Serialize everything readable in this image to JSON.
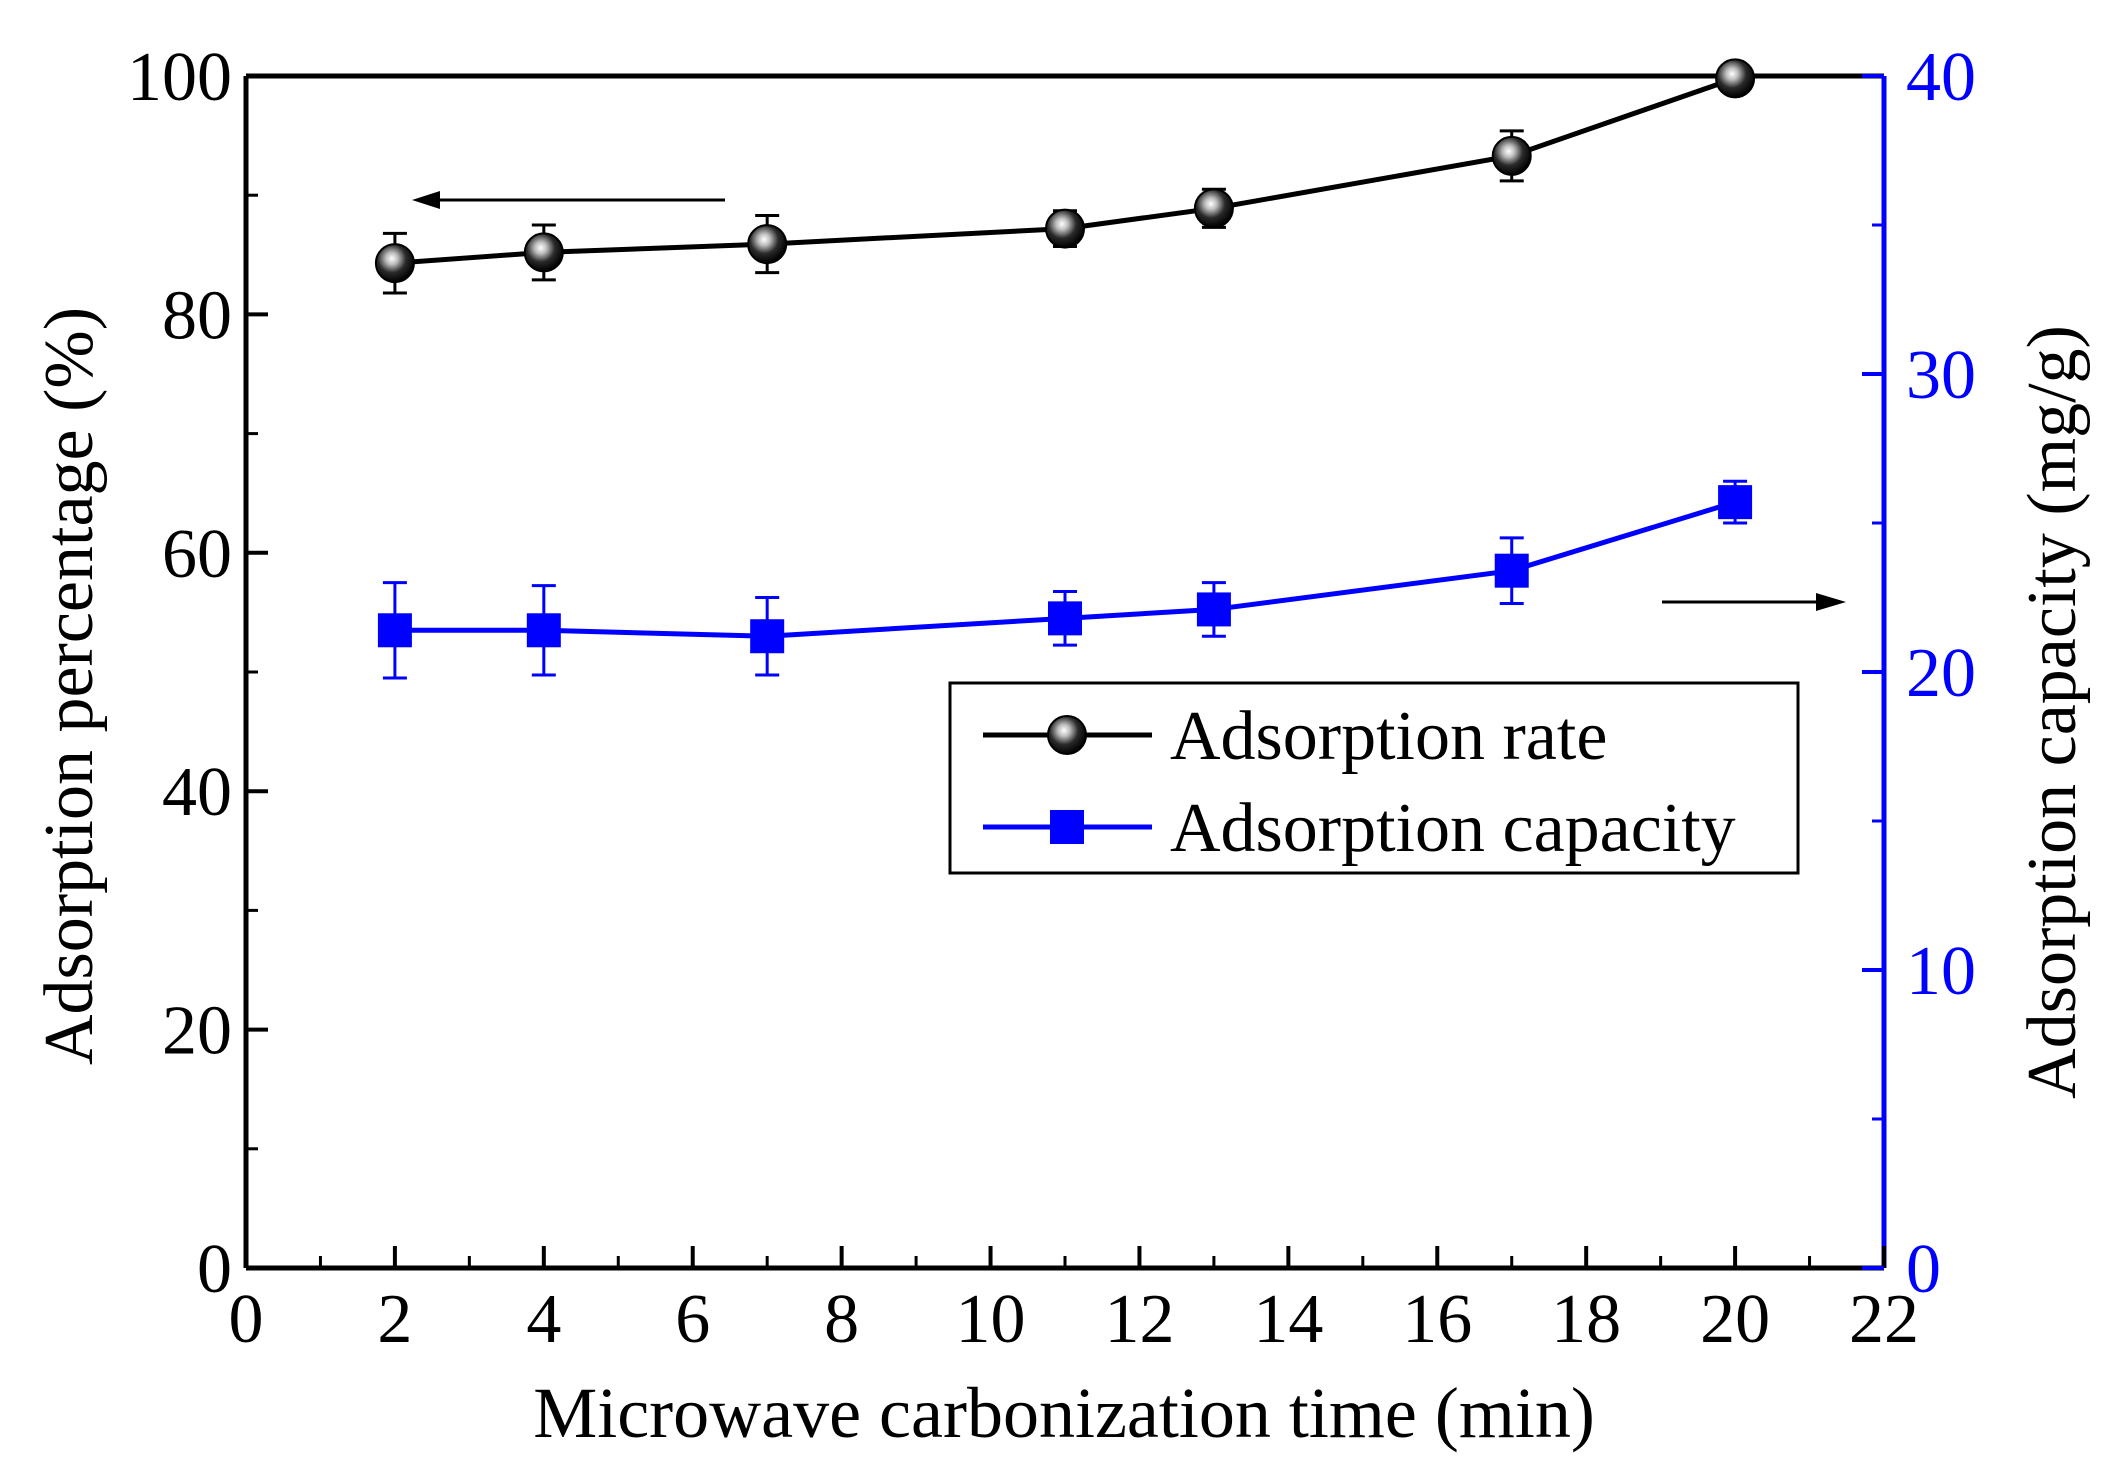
{
  "chart_data": {
    "type": "line",
    "xlabel": "Microwave carbonization time (min)",
    "ylabel_left": "Adsorption percentage (%)",
    "ylabel_right": "Adsorption capacity (mg/g)",
    "xlim": [
      0,
      22
    ],
    "ylim_left": [
      0,
      100
    ],
    "ylim_right": [
      0,
      40
    ],
    "x_ticks": [
      "0",
      "2",
      "4",
      "6",
      "8",
      "10",
      "12",
      "14",
      "16",
      "18",
      "20",
      "22"
    ],
    "y_left_ticks": [
      "0",
      "20",
      "40",
      "60",
      "80",
      "100"
    ],
    "y_right_ticks": [
      "0",
      "10",
      "20",
      "30",
      "40"
    ],
    "x": [
      2,
      4,
      7,
      11,
      13,
      17,
      20
    ],
    "series": [
      {
        "name": "Adsorption rate",
        "axis": "left",
        "color": "#000000",
        "marker": "sphere",
        "values": [
          84.3,
          85.2,
          85.9,
          87.2,
          88.9,
          93.3,
          99.8
        ],
        "errors": [
          2.5,
          2.3,
          2.4,
          1.5,
          1.6,
          2.1,
          0.8
        ]
      },
      {
        "name": "Adsorption capacity",
        "axis": "right",
        "color": "#0000ff",
        "marker": "square",
        "values": [
          21.4,
          21.4,
          21.2,
          21.8,
          22.1,
          23.4,
          25.7
        ],
        "errors": [
          1.6,
          1.5,
          1.3,
          0.9,
          0.9,
          1.1,
          0.7
        ]
      }
    ],
    "legend_position": "center-right",
    "annotations": [
      {
        "type": "arrow",
        "direction": "left",
        "meaning": "left axis"
      },
      {
        "type": "arrow",
        "direction": "right",
        "meaning": "right axis"
      }
    ],
    "grid": false
  }
}
